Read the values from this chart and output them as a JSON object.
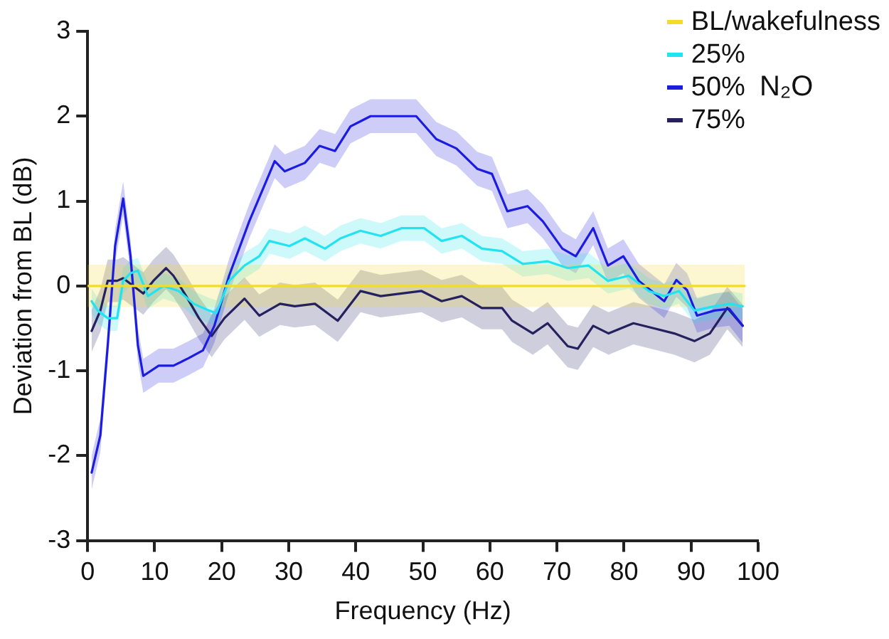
{
  "chart_data": {
    "type": "line",
    "xlabel": "Frequency (Hz)",
    "ylabel": "Deviation from BL (dB)",
    "legend_title": "N₂O",
    "legend": "top right",
    "grid": false,
    "xlim": [
      0,
      100
    ],
    "xticks": [
      0,
      10,
      20,
      30,
      40,
      50,
      60,
      70,
      80,
      90,
      100
    ],
    "ylim": [
      -3,
      3
    ],
    "yticks": [
      -3,
      -2,
      -1,
      0,
      1,
      2,
      3
    ],
    "series": [
      {
        "name": "BL/wakefulness",
        "color": "#f2dc2a",
        "x": [
          0,
          98
        ],
        "values": [
          0,
          0
        ],
        "lower": [
          -0.25,
          -0.25
        ],
        "upper": [
          0.25,
          0.25
        ]
      },
      {
        "name": "25%",
        "color": "#22e3ef",
        "x": [
          0.6,
          1.5,
          3,
          4.4,
          5.3,
          6.4,
          7.5,
          9,
          11.3,
          13.6,
          15.8,
          18.1,
          19.2,
          21.1,
          23.4,
          25.6,
          27.1,
          30.1,
          32.4,
          35.4,
          37.7,
          40.7,
          43.7,
          46.8,
          50.2,
          52.8,
          55.8,
          58.8,
          61.8,
          64.9,
          68.6,
          71.6,
          74.7,
          77.6,
          80.7,
          83.7,
          86,
          88.2,
          90.5,
          93.5,
          95.8,
          97.7
        ],
        "values": [
          -0.18,
          -0.29,
          -0.38,
          -0.38,
          0.06,
          0.15,
          0.18,
          -0.12,
          0,
          -0.06,
          -0.21,
          -0.29,
          -0.32,
          0.06,
          0.24,
          0.35,
          0.53,
          0.47,
          0.56,
          0.44,
          0.56,
          0.65,
          0.59,
          0.68,
          0.68,
          0.53,
          0.59,
          0.44,
          0.41,
          0.26,
          0.29,
          0.21,
          0.24,
          0.06,
          0.12,
          -0.06,
          -0.12,
          -0.06,
          -0.29,
          -0.24,
          -0.21,
          -0.24
        ],
        "lower": [
          -0.33,
          -0.44,
          -0.53,
          -0.53,
          -0.09,
          0,
          0.03,
          -0.27,
          -0.15,
          -0.21,
          -0.36,
          -0.44,
          -0.47,
          -0.09,
          0.09,
          0.2,
          0.38,
          0.32,
          0.41,
          0.29,
          0.41,
          0.5,
          0.44,
          0.53,
          0.53,
          0.38,
          0.44,
          0.29,
          0.26,
          0.11,
          0.14,
          0.06,
          0.09,
          -0.09,
          -0.03,
          -0.21,
          -0.27,
          -0.21,
          -0.44,
          -0.39,
          -0.36,
          -0.39
        ],
        "upper": [
          -0.03,
          -0.14,
          -0.23,
          -0.23,
          0.21,
          0.3,
          0.33,
          0.03,
          0.15,
          0.09,
          -0.06,
          -0.14,
          -0.17,
          0.21,
          0.39,
          0.5,
          0.68,
          0.62,
          0.71,
          0.59,
          0.71,
          0.8,
          0.74,
          0.83,
          0.83,
          0.68,
          0.74,
          0.59,
          0.56,
          0.41,
          0.44,
          0.36,
          0.39,
          0.21,
          0.27,
          0.09,
          0.03,
          0.09,
          -0.14,
          -0.09,
          -0.06,
          -0.09
        ]
      },
      {
        "name": "50%",
        "color": "#1c1ce0",
        "x": [
          0.6,
          1.9,
          3,
          4.1,
          5.3,
          6.4,
          7.5,
          8.3,
          10.6,
          12.8,
          15.1,
          17.2,
          18.9,
          21.1,
          24.1,
          27.9,
          29.4,
          32.4,
          34.6,
          36.9,
          39.2,
          42.2,
          45.2,
          49,
          52,
          55,
          58.1,
          60.3,
          62.6,
          65.6,
          67.9,
          70.8,
          72.8,
          75.4,
          77.6,
          79.9,
          82.2,
          86,
          87.8,
          89.4,
          90.9,
          93.5,
          95.7,
          97.7
        ],
        "values": [
          -2.2,
          -1.76,
          -0.7,
          0.47,
          1.03,
          0.35,
          -0.7,
          -1.06,
          -0.94,
          -0.94,
          -0.85,
          -0.76,
          -0.47,
          0.12,
          0.76,
          1.47,
          1.35,
          1.45,
          1.65,
          1.59,
          1.88,
          2.0,
          2.0,
          2.0,
          1.73,
          1.62,
          1.38,
          1.32,
          0.88,
          0.94,
          0.76,
          0.44,
          0.35,
          0.68,
          0.24,
          0.35,
          0.06,
          -0.18,
          0.07,
          -0.05,
          -0.35,
          -0.29,
          -0.27,
          -0.47
        ],
        "lower": [
          -2.4,
          -1.96,
          -0.9,
          0.27,
          0.83,
          0.15,
          -0.9,
          -1.26,
          -1.14,
          -1.14,
          -1.05,
          -0.96,
          -0.67,
          -0.08,
          0.56,
          1.27,
          1.15,
          1.25,
          1.45,
          1.39,
          1.68,
          1.8,
          1.8,
          1.8,
          1.53,
          1.42,
          1.18,
          1.12,
          0.68,
          0.74,
          0.56,
          0.24,
          0.15,
          0.48,
          0.04,
          0.15,
          -0.14,
          -0.38,
          -0.13,
          -0.25,
          -0.55,
          -0.49,
          -0.47,
          -0.67
        ],
        "upper": [
          -2.0,
          -1.56,
          -0.5,
          0.67,
          1.23,
          0.55,
          -0.5,
          -0.86,
          -0.74,
          -0.74,
          -0.65,
          -0.56,
          -0.27,
          0.32,
          0.96,
          1.67,
          1.55,
          1.65,
          1.85,
          1.79,
          2.08,
          2.2,
          2.2,
          2.2,
          1.93,
          1.82,
          1.58,
          1.52,
          1.08,
          1.14,
          0.96,
          0.64,
          0.55,
          0.88,
          0.44,
          0.55,
          0.26,
          0.02,
          0.27,
          0.15,
          -0.15,
          -0.09,
          -0.07,
          -0.27
        ]
      },
      {
        "name": "75%",
        "color": "#25215e",
        "x": [
          0.6,
          1.9,
          3,
          4.4,
          5.3,
          6.8,
          8.3,
          9.8,
          11.7,
          12.8,
          14.7,
          16.6,
          18.5,
          20.4,
          23.4,
          25.6,
          28.7,
          30.9,
          33.9,
          37.3,
          40.7,
          43.7,
          49.8,
          52.8,
          55.8,
          58.8,
          61.8,
          63.3,
          66.4,
          68.6,
          71.6,
          73.1,
          75.4,
          77.7,
          81.4,
          84.5,
          87.5,
          90.5,
          92.8,
          95.4,
          97.7
        ],
        "values": [
          -0.53,
          -0.29,
          0.06,
          0.06,
          0.09,
          0,
          -0.09,
          0.06,
          0.21,
          0.12,
          -0.12,
          -0.38,
          -0.59,
          -0.38,
          -0.15,
          -0.35,
          -0.21,
          -0.24,
          -0.21,
          -0.41,
          -0.06,
          -0.12,
          -0.06,
          -0.18,
          -0.12,
          -0.26,
          -0.26,
          -0.41,
          -0.56,
          -0.44,
          -0.71,
          -0.74,
          -0.47,
          -0.56,
          -0.44,
          -0.5,
          -0.56,
          -0.65,
          -0.56,
          -0.26,
          -0.47
        ],
        "lower": [
          -0.78,
          -0.54,
          -0.19,
          -0.19,
          -0.16,
          -0.25,
          -0.34,
          -0.19,
          -0.04,
          -0.13,
          -0.37,
          -0.63,
          -0.84,
          -0.63,
          -0.4,
          -0.6,
          -0.46,
          -0.49,
          -0.46,
          -0.66,
          -0.31,
          -0.37,
          -0.31,
          -0.43,
          -0.37,
          -0.51,
          -0.51,
          -0.66,
          -0.81,
          -0.69,
          -0.96,
          -0.99,
          -0.72,
          -0.81,
          -0.69,
          -0.75,
          -0.81,
          -0.9,
          -0.81,
          -0.51,
          -0.72
        ],
        "upper": [
          -0.28,
          -0.04,
          0.31,
          0.31,
          0.34,
          0.25,
          0.16,
          0.31,
          0.46,
          0.37,
          0.13,
          -0.13,
          -0.34,
          -0.13,
          0.1,
          -0.1,
          0.04,
          0.01,
          0.04,
          -0.16,
          0.19,
          0.13,
          0.19,
          0.07,
          0.13,
          -0.01,
          -0.01,
          -0.16,
          -0.31,
          -0.19,
          -0.46,
          -0.49,
          -0.22,
          -0.31,
          -0.19,
          -0.25,
          -0.31,
          -0.4,
          -0.31,
          -0.01,
          -0.22
        ]
      }
    ]
  }
}
